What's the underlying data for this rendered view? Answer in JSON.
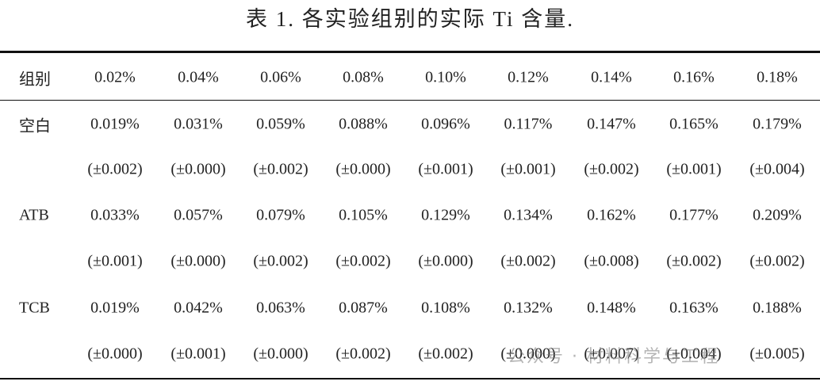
{
  "title": "表 1. 各实验组别的实际 Ti 含量.",
  "table": {
    "header": [
      "组别",
      "0.02%",
      "0.04%",
      "0.06%",
      "0.08%",
      "0.10%",
      "0.12%",
      "0.14%",
      "0.16%",
      "0.18%"
    ],
    "rows": [
      {
        "group": "空白",
        "values": [
          "0.019%",
          "0.031%",
          "0.059%",
          "0.088%",
          "0.096%",
          "0.117%",
          "0.147%",
          "0.165%",
          "0.179%"
        ],
        "errors": [
          "(±0.002)",
          "(±0.000)",
          "(±0.002)",
          "(±0.000)",
          "(±0.001)",
          "(±0.001)",
          "(±0.002)",
          "(±0.001)",
          "(±0.004)"
        ]
      },
      {
        "group": "ATB",
        "values": [
          "0.033%",
          "0.057%",
          "0.079%",
          "0.105%",
          "0.129%",
          "0.134%",
          "0.162%",
          "0.177%",
          "0.209%"
        ],
        "errors": [
          "(±0.001)",
          "(±0.000)",
          "(±0.002)",
          "(±0.002)",
          "(±0.000)",
          "(±0.002)",
          "(±0.008)",
          "(±0.002)",
          "(±0.002)"
        ]
      },
      {
        "group": "TCB",
        "values": [
          "0.019%",
          "0.042%",
          "0.063%",
          "0.087%",
          "0.108%",
          "0.132%",
          "0.148%",
          "0.163%",
          "0.188%"
        ],
        "errors": [
          "(±0.000)",
          "(±0.001)",
          "(±0.000)",
          "(±0.002)",
          "(±0.002)",
          "(±0.000)",
          "(±0.007)",
          "(±0.004)",
          "(±0.005)"
        ]
      }
    ]
  },
  "watermark": "公众号 · 材料科学与工程"
}
